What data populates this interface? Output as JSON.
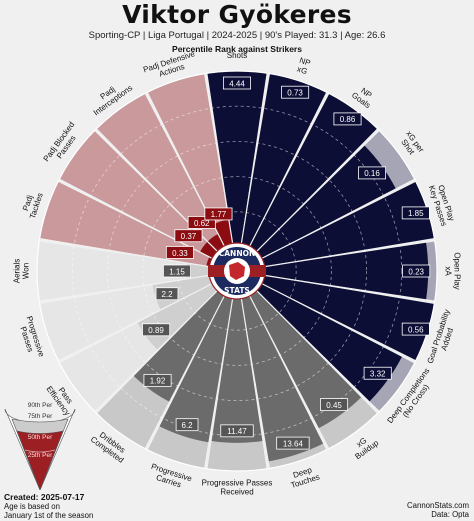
{
  "header": {
    "title": "Viktor Gyökeres",
    "subtitle": "Sporting-CP  | Liga Portugal | 2024-2025 | 90's Played: 31.3 | Age: 26.6",
    "rank_label": "Percentile Rank against Strikers"
  },
  "logo": {
    "top_text": "CANNON",
    "bottom_text": "STATS"
  },
  "legend": {
    "labels": [
      "90th Per",
      "75th Per",
      "50th Per",
      "25th Per"
    ],
    "colors": {
      "light": "#ffffff",
      "mid": "#cccccc",
      "dark": "#9b1f23"
    }
  },
  "footer": {
    "created": "Created: 2025-07-17",
    "age_note_1": "Age is based on",
    "age_note_2": "January 1st of the season",
    "site": "CannonStats.com",
    "source": "Data: Opta"
  },
  "chart_data": {
    "type": "polar_bar",
    "colors": {
      "defending": "#c9999c",
      "defending_inner": "#8b0d12",
      "attacking": "#0d0e36",
      "attacking_bg": "#a5a5b5",
      "possession": "#6b6b6b",
      "possession_bg": "#c8c8c8",
      "possession_light": "#cfcfcf",
      "possession_light_bg": "#e6e6e6"
    },
    "metrics": [
      {
        "label": "Shots",
        "group": "attacking",
        "value": "4.44",
        "percentile": 100
      },
      {
        "label": "NP xG",
        "group": "attacking",
        "value": "0.73",
        "percentile": 100
      },
      {
        "label": "NP Goals",
        "group": "attacking",
        "value": "0.86",
        "percentile": 100
      },
      {
        "label": "xG per Shot",
        "group": "attacking",
        "value": "0.16",
        "percentile": 88
      },
      {
        "label": "Open Play Key Passes",
        "group": "attacking",
        "value": "1.85",
        "percentile": 100
      },
      {
        "label": "Open Play xA",
        "group": "attacking",
        "value": "0.23",
        "percentile": 95
      },
      {
        "label": "Goal Probability Added",
        "group": "attacking",
        "value": "0.56",
        "percentile": 100
      },
      {
        "label": "Deep Completions (No Cross)",
        "group": "attacking",
        "value": "3.32",
        "percentile": 92
      },
      {
        "label": "xG Buildup",
        "group": "possession",
        "value": "0.45",
        "percentile": 87
      },
      {
        "label": "Deep Touches",
        "group": "possession",
        "value": "13.64",
        "percentile": 96
      },
      {
        "label": "Progressive Passes Received",
        "group": "possession",
        "value": "11.47",
        "percentile": 84
      },
      {
        "label": "Progressive Carries",
        "group": "possession",
        "value": "6.2",
        "percentile": 85
      },
      {
        "label": "Dribbles Completed",
        "group": "possession",
        "value": "1.92",
        "percentile": 70
      },
      {
        "label": "Pass Efficiency",
        "group": "possession_light",
        "value": "0.89",
        "percentile": 50
      },
      {
        "label": "Progressive Passes",
        "group": "possession_light",
        "value": "2.2",
        "percentile": 35
      },
      {
        "label": "Aerials Won",
        "group": "possession_light",
        "value": "1.15",
        "percentile": 15
      },
      {
        "label": "Padj Tackles",
        "group": "defending",
        "value": "0.33",
        "percentile": 4
      },
      {
        "label": "Padj Blocked Passes",
        "group": "defending",
        "value": "0.37",
        "percentile": 10
      },
      {
        "label": "Padj Interceptions",
        "group": "defending",
        "value": "0.62",
        "percentile": 10
      },
      {
        "label": "Padj Defensive Actions",
        "group": "defending",
        "value": "1.77",
        "percentile": 16
      }
    ]
  }
}
